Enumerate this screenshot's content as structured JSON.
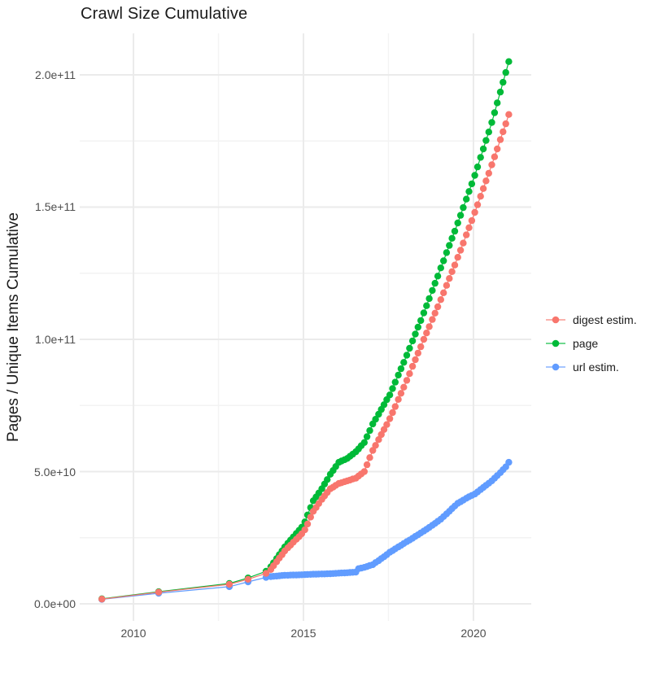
{
  "chart_data": {
    "type": "scatter",
    "title": "Crawl Size Cumulative",
    "xlabel": "",
    "ylabel": "Pages / Unique Items Cumulative",
    "legend_position": "right",
    "grid": "on",
    "background_color": "#ffffff",
    "grid_major_color": "#ebebeb",
    "grid_minor_color": "#f3f3f3",
    "x_unit": "decimal year",
    "y_unit": "items (values listed in billions, 1 = 1e9)",
    "xlim": [
      2008.42,
      2021.7
    ],
    "ylim": [
      -6.46,
      215.69
    ],
    "x_ticks": [
      {
        "label": "2010",
        "year": 2010
      },
      {
        "label": "2015",
        "year": 2015
      },
      {
        "label": "2020",
        "year": 2020
      }
    ],
    "x_minor_ticks": [
      2012.5,
      2017.5
    ],
    "y_ticks": [
      {
        "label": "0.0e+00",
        "value": 0
      },
      {
        "label": "5.0e+10",
        "value": 50
      },
      {
        "label": "1.0e+11",
        "value": 100
      },
      {
        "label": "1.5e+11",
        "value": 150
      },
      {
        "label": "2.0e+11",
        "value": 200
      }
    ],
    "y_minor_ticks": [
      25,
      75,
      125,
      175
    ],
    "x": [
      2009.07,
      2010.74,
      2012.82,
      2013.37,
      2013.9,
      2014.04,
      2014.12,
      2014.21,
      2014.29,
      2014.37,
      2014.45,
      2014.54,
      2014.62,
      2014.7,
      2014.79,
      2014.87,
      2014.95,
      2015.04,
      2015.12,
      2015.21,
      2015.29,
      2015.37,
      2015.45,
      2015.54,
      2015.62,
      2015.7,
      2015.79,
      2015.87,
      2015.95,
      2016.04,
      2016.12,
      2016.21,
      2016.29,
      2016.37,
      2016.45,
      2016.54,
      2016.62,
      2016.7,
      2016.79,
      2016.87,
      2016.95,
      2017.04,
      2017.12,
      2017.21,
      2017.29,
      2017.37,
      2017.45,
      2017.54,
      2017.62,
      2017.7,
      2017.79,
      2017.87,
      2017.95,
      2018.04,
      2018.12,
      2018.21,
      2018.29,
      2018.37,
      2018.45,
      2018.54,
      2018.62,
      2018.7,
      2018.79,
      2018.87,
      2018.95,
      2019.04,
      2019.12,
      2019.21,
      2019.29,
      2019.37,
      2019.45,
      2019.54,
      2019.62,
      2019.7,
      2019.79,
      2019.87,
      2019.95,
      2020.04,
      2020.12,
      2020.21,
      2020.29,
      2020.37,
      2020.45,
      2020.54,
      2020.62,
      2020.7,
      2020.79,
      2020.87,
      2020.95,
      2021.04
    ],
    "series": [
      {
        "name": "digest estim.",
        "color": "#F8766D",
        "values_in_billions": [
          1.8,
          4.4,
          7.4,
          9.3,
          11.5,
          13.0,
          14.4,
          15.9,
          17.3,
          18.6,
          20.0,
          21.2,
          22.2,
          23.3,
          24.4,
          25.4,
          26.5,
          28.0,
          30.2,
          32.8,
          35.0,
          36.4,
          37.9,
          39.5,
          40.8,
          42.1,
          43.5,
          44.1,
          44.8,
          45.5,
          45.8,
          46.2,
          46.5,
          46.8,
          47.2,
          47.5,
          48.3,
          49.1,
          50.0,
          52.6,
          55.3,
          58.0,
          59.9,
          62.1,
          64.0,
          65.9,
          67.8,
          70.0,
          72.3,
          74.6,
          77.3,
          79.6,
          81.9,
          84.5,
          87.0,
          89.8,
          92.3,
          94.8,
          97.2,
          100.0,
          102.4,
          104.8,
          107.5,
          109.9,
          112.3,
          115.0,
          117.6,
          120.4,
          123.0,
          125.6,
          128.1,
          131.0,
          133.7,
          136.4,
          139.5,
          142.2,
          144.9,
          148.0,
          150.9,
          154.1,
          157.0,
          159.9,
          162.8,
          166.0,
          169.0,
          172.0,
          175.5,
          178.5,
          181.5,
          185.0
        ]
      },
      {
        "name": "page",
        "color": "#00BA38",
        "values_in_billions": [
          1.9,
          4.6,
          7.7,
          9.8,
          12.3,
          14.0,
          15.5,
          17.1,
          18.6,
          20.0,
          21.5,
          22.9,
          24.1,
          25.3,
          26.6,
          27.8,
          29.0,
          31.0,
          33.6,
          36.4,
          39.0,
          40.4,
          41.9,
          43.5,
          45.3,
          47.0,
          49.0,
          50.4,
          51.9,
          53.5,
          54.0,
          54.5,
          55.0,
          55.8,
          56.6,
          57.5,
          58.6,
          59.8,
          61.0,
          63.2,
          65.5,
          68.0,
          69.8,
          71.7,
          73.5,
          75.3,
          77.2,
          79.0,
          81.4,
          83.8,
          86.5,
          88.9,
          91.3,
          94.0,
          96.6,
          99.4,
          102.0,
          104.6,
          107.1,
          110.0,
          112.7,
          115.4,
          118.5,
          121.2,
          123.9,
          127.0,
          129.7,
          132.8,
          135.5,
          138.2,
          140.9,
          144.0,
          146.9,
          149.8,
          153.0,
          155.9,
          158.8,
          162.0,
          165.2,
          168.8,
          172.0,
          175.2,
          178.4,
          182.0,
          185.7,
          189.4,
          193.5,
          197.2,
          200.9,
          205.0
        ]
      },
      {
        "name": "url estim.",
        "color": "#619CFF",
        "values_in_billions": [
          1.7,
          4.0,
          6.5,
          8.3,
          10.0,
          10.3,
          10.4,
          10.5,
          10.6,
          10.7,
          10.8,
          10.8,
          10.85,
          10.9,
          10.9,
          10.95,
          11.0,
          11.05,
          11.1,
          11.15,
          11.2,
          11.2,
          11.25,
          11.3,
          11.3,
          11.35,
          11.4,
          11.45,
          11.5,
          11.6,
          11.65,
          11.7,
          11.75,
          11.85,
          11.9,
          12.0,
          13.3,
          13.5,
          13.8,
          14.1,
          14.5,
          14.8,
          15.6,
          16.3,
          17.1,
          17.8,
          18.6,
          19.5,
          20.1,
          20.8,
          21.5,
          22.1,
          22.8,
          23.5,
          24.1,
          24.8,
          25.5,
          26.1,
          26.8,
          27.5,
          28.2,
          28.9,
          29.7,
          30.4,
          31.2,
          32.0,
          33.0,
          34.0,
          35.0,
          36.0,
          37.0,
          38.0,
          38.6,
          39.2,
          39.9,
          40.5,
          41.0,
          41.5,
          42.3,
          43.2,
          44.0,
          44.8,
          45.6,
          46.5,
          47.5,
          48.5,
          49.6,
          50.7,
          51.8,
          53.5
        ]
      }
    ]
  }
}
